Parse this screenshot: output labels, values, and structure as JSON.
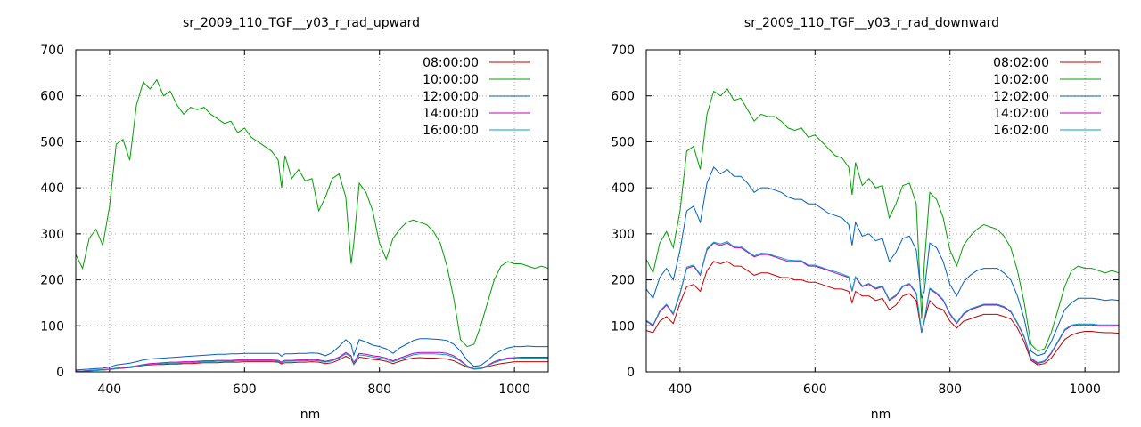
{
  "chart_data": [
    {
      "type": "line",
      "title": "sr_2009_110_TGF__y03_r_rad_upward",
      "xlabel": "nm",
      "ylabel": "",
      "xlim": [
        350,
        1050
      ],
      "ylim": [
        0,
        700
      ],
      "xticks": [
        400,
        600,
        800,
        1000
      ],
      "yticks": [
        0,
        100,
        200,
        300,
        400,
        500,
        600,
        700
      ],
      "grid": true,
      "legend_position": "top-right",
      "x": [
        350,
        360,
        370,
        380,
        390,
        400,
        410,
        420,
        430,
        440,
        450,
        460,
        470,
        480,
        490,
        500,
        510,
        520,
        530,
        540,
        550,
        560,
        570,
        580,
        590,
        600,
        610,
        620,
        630,
        640,
        650,
        655,
        660,
        670,
        680,
        690,
        700,
        710,
        720,
        730,
        740,
        750,
        758,
        762,
        770,
        780,
        790,
        800,
        810,
        820,
        830,
        840,
        850,
        860,
        870,
        880,
        890,
        900,
        910,
        920,
        930,
        940,
        950,
        960,
        970,
        980,
        990,
        1000,
        1010,
        1020,
        1030,
        1040,
        1050
      ],
      "series": [
        {
          "name": "08:00:00",
          "color": "#c00000",
          "values": [
            2,
            2,
            3,
            3,
            4,
            5,
            7,
            8,
            9,
            11,
            14,
            15,
            16,
            16,
            17,
            17,
            18,
            18,
            19,
            20,
            20,
            20,
            21,
            21,
            21,
            22,
            22,
            22,
            22,
            22,
            21,
            17,
            20,
            20,
            21,
            21,
            22,
            21,
            18,
            20,
            26,
            34,
            28,
            16,
            32,
            30,
            27,
            26,
            23,
            18,
            23,
            27,
            30,
            31,
            30,
            30,
            29,
            28,
            24,
            17,
            10,
            6,
            7,
            11,
            15,
            18,
            20,
            22,
            22,
            22,
            22,
            22,
            22
          ]
        },
        {
          "name": "10:00:00",
          "color": "#00a000",
          "values": [
            255,
            225,
            290,
            310,
            275,
            360,
            495,
            505,
            460,
            580,
            630,
            615,
            635,
            600,
            610,
            580,
            560,
            575,
            570,
            575,
            560,
            550,
            540,
            545,
            520,
            530,
            510,
            500,
            490,
            480,
            460,
            400,
            470,
            420,
            440,
            415,
            420,
            350,
            380,
            420,
            430,
            380,
            235,
            280,
            410,
            390,
            350,
            280,
            245,
            290,
            310,
            325,
            330,
            325,
            320,
            305,
            280,
            230,
            160,
            70,
            55,
            60,
            100,
            150,
            200,
            230,
            240,
            235,
            235,
            230,
            225,
            230,
            225
          ]
        },
        {
          "name": "12:00:00",
          "color": "#0060c0",
          "values": [
            4,
            5,
            6,
            7,
            8,
            10,
            15,
            17,
            19,
            22,
            26,
            28,
            29,
            30,
            31,
            32,
            33,
            34,
            35,
            36,
            37,
            38,
            38,
            39,
            39,
            40,
            40,
            40,
            40,
            40,
            40,
            34,
            39,
            39,
            40,
            40,
            41,
            40,
            35,
            42,
            55,
            70,
            60,
            36,
            70,
            65,
            58,
            55,
            50,
            40,
            52,
            60,
            68,
            72,
            72,
            71,
            70,
            68,
            60,
            45,
            25,
            12,
            14,
            25,
            38,
            46,
            52,
            55,
            55,
            56,
            55,
            55,
            55
          ]
        },
        {
          "name": "14:00:00",
          "color": "#c000c0",
          "values": [
            2,
            2,
            3,
            4,
            5,
            6,
            8,
            10,
            11,
            13,
            16,
            18,
            19,
            20,
            21,
            21,
            22,
            22,
            23,
            24,
            24,
            25,
            25,
            25,
            26,
            26,
            26,
            26,
            26,
            26,
            25,
            21,
            25,
            25,
            26,
            26,
            27,
            26,
            23,
            26,
            32,
            42,
            35,
            20,
            40,
            38,
            35,
            33,
            30,
            24,
            30,
            35,
            40,
            42,
            42,
            42,
            42,
            40,
            35,
            25,
            13,
            7,
            8,
            14,
            22,
            27,
            30,
            31,
            32,
            32,
            32,
            32,
            32
          ]
        },
        {
          "name": "16:00:00",
          "color": "#00a0c0",
          "values": [
            1,
            2,
            2,
            3,
            4,
            5,
            7,
            9,
            10,
            12,
            15,
            16,
            17,
            18,
            19,
            19,
            20,
            20,
            21,
            22,
            22,
            23,
            23,
            23,
            24,
            24,
            24,
            24,
            24,
            24,
            23,
            19,
            23,
            23,
            24,
            24,
            25,
            24,
            21,
            24,
            30,
            39,
            33,
            18,
            37,
            35,
            32,
            30,
            27,
            22,
            27,
            32,
            37,
            39,
            39,
            39,
            38,
            37,
            32,
            23,
            12,
            6,
            7,
            13,
            20,
            25,
            28,
            29,
            30,
            30,
            30,
            30,
            30
          ]
        }
      ]
    },
    {
      "type": "line",
      "title": "sr_2009_110_TGF__y03_r_rad_downward",
      "xlabel": "nm",
      "ylabel": "",
      "xlim": [
        350,
        1050
      ],
      "ylim": [
        0,
        700
      ],
      "xticks": [
        400,
        600,
        800,
        1000
      ],
      "yticks": [
        0,
        100,
        200,
        300,
        400,
        500,
        600,
        700
      ],
      "grid": true,
      "legend_position": "top-right",
      "x": [
        350,
        360,
        370,
        380,
        390,
        400,
        410,
        420,
        430,
        440,
        450,
        460,
        470,
        480,
        490,
        500,
        510,
        520,
        530,
        540,
        550,
        560,
        570,
        580,
        590,
        600,
        610,
        620,
        630,
        640,
        650,
        655,
        660,
        670,
        680,
        690,
        700,
        710,
        720,
        730,
        740,
        750,
        758,
        762,
        770,
        780,
        790,
        800,
        810,
        820,
        830,
        840,
        850,
        860,
        870,
        880,
        890,
        900,
        910,
        920,
        930,
        940,
        950,
        960,
        970,
        980,
        990,
        1000,
        1010,
        1020,
        1030,
        1040,
        1050
      ],
      "series": [
        {
          "name": "08:02:00",
          "color": "#c00000",
          "values": [
            90,
            85,
            110,
            120,
            105,
            150,
            185,
            190,
            175,
            220,
            240,
            235,
            240,
            230,
            230,
            220,
            210,
            215,
            215,
            210,
            205,
            205,
            200,
            200,
            195,
            195,
            190,
            185,
            180,
            180,
            175,
            150,
            175,
            165,
            165,
            155,
            160,
            135,
            145,
            165,
            170,
            155,
            85,
            110,
            155,
            140,
            135,
            110,
            95,
            110,
            115,
            120,
            125,
            125,
            125,
            120,
            115,
            95,
            65,
            25,
            15,
            18,
            30,
            50,
            70,
            80,
            85,
            88,
            88,
            86,
            85,
            85,
            84
          ]
        },
        {
          "name": "10:02:00",
          "color": "#00a000",
          "values": [
            245,
            215,
            280,
            305,
            270,
            350,
            480,
            490,
            440,
            560,
            610,
            600,
            615,
            590,
            595,
            570,
            545,
            560,
            555,
            555,
            545,
            530,
            525,
            530,
            510,
            515,
            500,
            485,
            470,
            465,
            445,
            385,
            455,
            405,
            420,
            400,
            405,
            335,
            365,
            405,
            410,
            365,
            115,
            235,
            390,
            375,
            335,
            265,
            230,
            275,
            295,
            310,
            320,
            315,
            310,
            295,
            270,
            220,
            150,
            60,
            45,
            50,
            85,
            135,
            185,
            220,
            230,
            225,
            225,
            220,
            215,
            220,
            215
          ]
        },
        {
          "name": "12:02:00",
          "color": "#0060c0",
          "values": [
            180,
            160,
            205,
            225,
            200,
            265,
            350,
            360,
            325,
            410,
            445,
            430,
            440,
            425,
            425,
            410,
            390,
            400,
            400,
            395,
            390,
            380,
            375,
            375,
            365,
            365,
            355,
            345,
            340,
            335,
            320,
            275,
            325,
            295,
            300,
            285,
            290,
            240,
            260,
            290,
            295,
            265,
            160,
            175,
            280,
            270,
            240,
            190,
            165,
            195,
            210,
            220,
            225,
            225,
            225,
            215,
            200,
            165,
            115,
            45,
            35,
            40,
            65,
            100,
            135,
            150,
            160,
            160,
            160,
            158,
            155,
            157,
            155
          ]
        },
        {
          "name": "14:02:00",
          "color": "#c000c0",
          "values": [
            110,
            100,
            130,
            145,
            125,
            170,
            225,
            230,
            210,
            265,
            280,
            275,
            280,
            270,
            270,
            260,
            250,
            255,
            255,
            250,
            245,
            240,
            240,
            240,
            230,
            230,
            225,
            220,
            215,
            210,
            205,
            175,
            205,
            185,
            190,
            180,
            185,
            155,
            165,
            185,
            190,
            170,
            85,
            110,
            180,
            170,
            155,
            125,
            105,
            125,
            135,
            140,
            145,
            145,
            145,
            140,
            130,
            105,
            75,
            28,
            18,
            22,
            40,
            65,
            90,
            100,
            102,
            102,
            102,
            100,
            100,
            100,
            100
          ]
        },
        {
          "name": "16:02:00",
          "color": "#00a0c0",
          "values": [
            112,
            102,
            132,
            147,
            127,
            172,
            228,
            232,
            212,
            268,
            282,
            278,
            283,
            272,
            273,
            262,
            252,
            258,
            257,
            252,
            248,
            243,
            242,
            242,
            232,
            232,
            227,
            222,
            218,
            213,
            207,
            177,
            207,
            187,
            192,
            182,
            187,
            157,
            167,
            187,
            192,
            172,
            87,
            112,
            182,
            172,
            157,
            127,
            107,
            127,
            137,
            142,
            147,
            147,
            147,
            142,
            132,
            107,
            77,
            30,
            20,
            24,
            42,
            67,
            92,
            102,
            104,
            104,
            104,
            102,
            102,
            102,
            102
          ]
        }
      ]
    }
  ]
}
